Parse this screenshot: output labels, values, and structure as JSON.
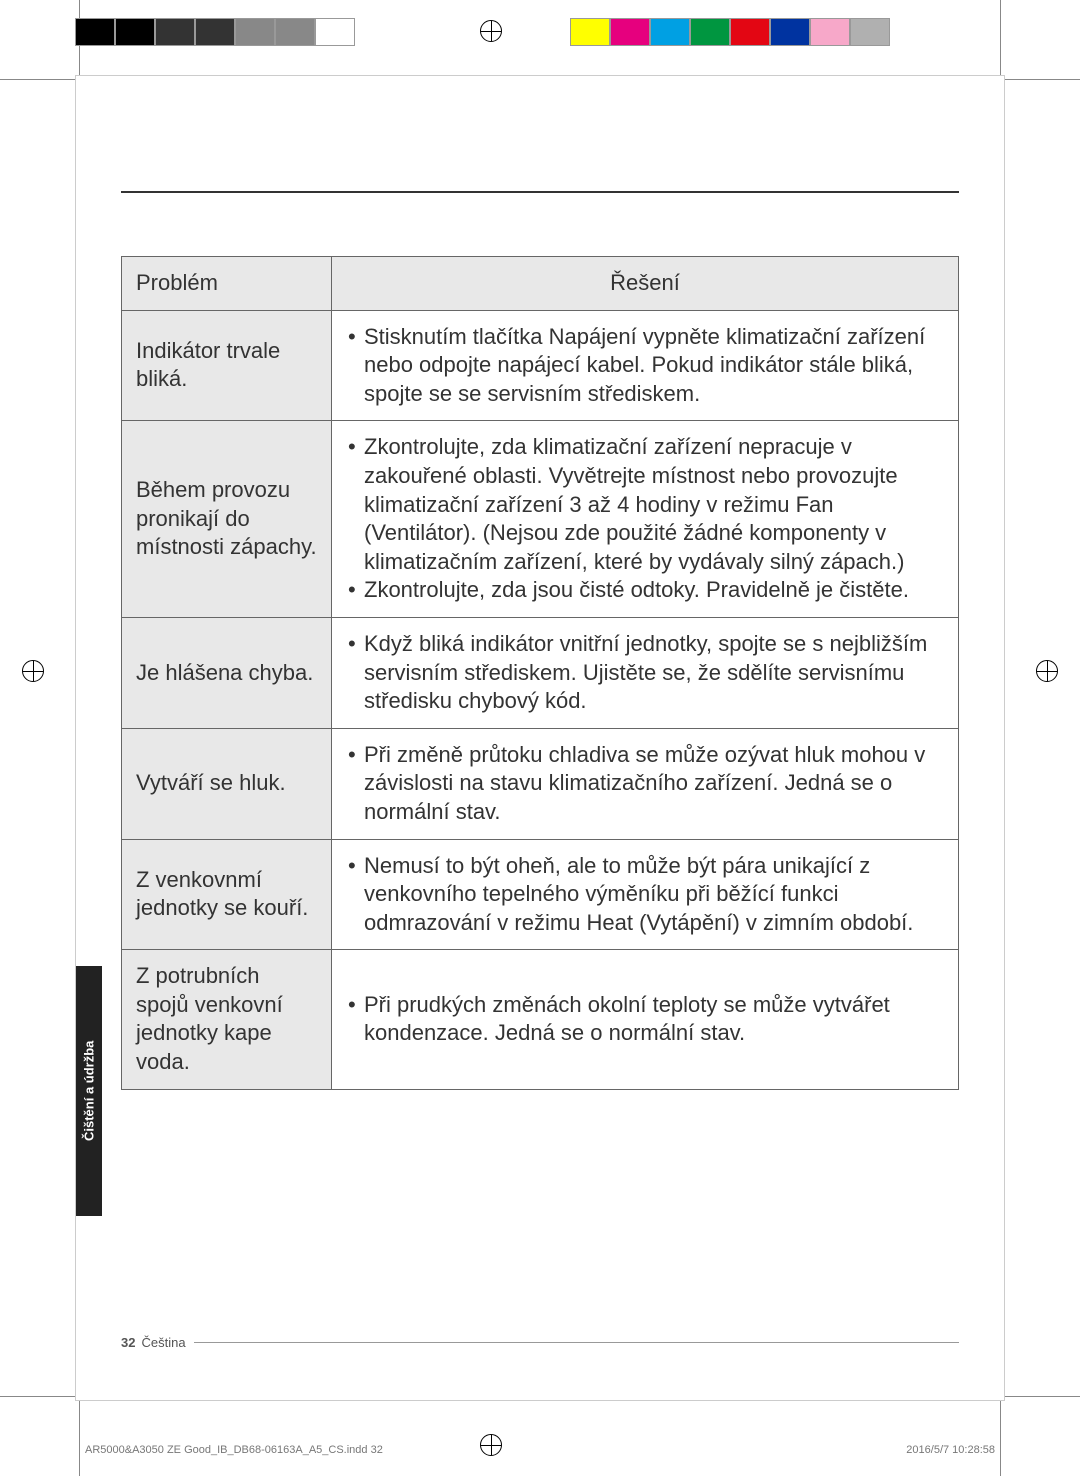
{
  "crop_swatches_left": [
    "#000000",
    "#000000",
    "#333333",
    "#333333",
    "#888888",
    "#888888",
    "#ffffff"
  ],
  "crop_swatches_right": [
    "#ffff00",
    "#e6007e",
    "#00a0e3",
    "#009640",
    "#e30613",
    "#0033a0",
    "#f7a8c9",
    "#b0b0b0"
  ],
  "side_tab": "Čištění a údržba",
  "footer_page": "32",
  "footer_lang": "Čeština",
  "print_file": "AR5000&A3050 ZE Good_IB_DB68-06163A_A5_CS.indd   32",
  "print_time": "2016/5/7   10:28:58",
  "table": {
    "header_problem": "Problém",
    "header_solution": "Řešení",
    "rows": [
      {
        "problem": "Indikátor trvale bliká.",
        "solutions": [
          "Stisknutím tlačítka Napájení vypněte klimatizační zařízení nebo odpojte napájecí kabel. Pokud indikátor stále bliká, spojte se se servisním střediskem."
        ]
      },
      {
        "problem": "Během provozu pronikají do místnosti zápachy.",
        "solutions": [
          "Zkontrolujte, zda klimatizační zařízení nepracuje v zakouřené oblasti. Vyvětrejte místnost nebo provozujte klimatizační zařízení 3 až 4 hodiny v režimu Fan (Ventilátor). (Nejsou zde použité žádné komponenty v klimatizačním zařízení, které by vydávaly silný zápach.)",
          "Zkontrolujte, zda jsou čisté odtoky. Pravidelně je čistěte."
        ]
      },
      {
        "problem": "Je hlášena chyba.",
        "solutions": [
          "Když bliká indikátor vnitřní jednotky, spojte se s nejbližším servisním střediskem. Ujistěte se, že sdělíte servisnímu středisku chybový kód."
        ]
      },
      {
        "problem": "Vytváří se hluk.",
        "solutions": [
          "Při změně průtoku chladiva se může ozývat hluk mohou v závislosti na stavu klimatizačního zařízení. Jedná se o normální stav."
        ]
      },
      {
        "problem": "Z venkovnmí jednotky se kouří.",
        "solutions": [
          "Nemusí to být oheň, ale to může být pára unikající z venkovního tepelného výměníku při běžící funkci odmrazování v režimu Heat (Vytápění) v zimním období."
        ]
      },
      {
        "problem": "Z potrubních spojů venkovní jednotky kape voda.",
        "solutions": [
          "Při prudkých změnách okolní teploty se může vytvářet kondenzace. Jedná se o normální stav."
        ]
      }
    ]
  }
}
